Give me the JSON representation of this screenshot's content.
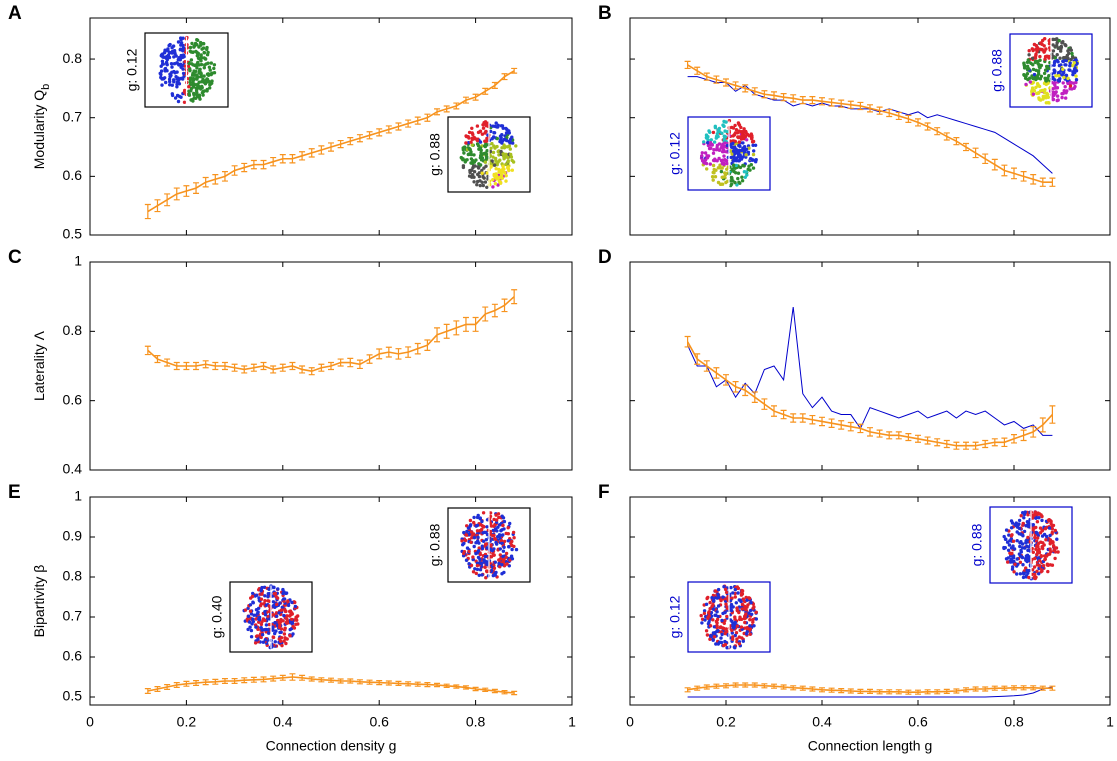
{
  "chart_data": [
    {
      "type": "line",
      "label": "A",
      "ylabel": "Modularity Q",
      "ylabel_sub": "b",
      "xlim": [
        0,
        1
      ],
      "xticks": [
        0,
        0.2,
        0.4,
        0.6,
        0.8,
        1
      ],
      "ylim": [
        0.5,
        0.87
      ],
      "yticks": [
        0.5,
        0.6,
        0.7,
        0.8
      ],
      "x": [
        0.12,
        0.14,
        0.16,
        0.18,
        0.2,
        0.22,
        0.24,
        0.26,
        0.28,
        0.3,
        0.32,
        0.34,
        0.36,
        0.38,
        0.4,
        0.42,
        0.44,
        0.46,
        0.48,
        0.5,
        0.52,
        0.54,
        0.56,
        0.58,
        0.6,
        0.62,
        0.64,
        0.66,
        0.68,
        0.7,
        0.72,
        0.74,
        0.76,
        0.78,
        0.8,
        0.82,
        0.84,
        0.86,
        0.88
      ],
      "series": [
        {
          "color": "#f7931e",
          "values": [
            0.54,
            0.55,
            0.56,
            0.57,
            0.575,
            0.58,
            0.59,
            0.595,
            0.6,
            0.61,
            0.615,
            0.62,
            0.62,
            0.625,
            0.63,
            0.63,
            0.635,
            0.64,
            0.645,
            0.65,
            0.655,
            0.66,
            0.665,
            0.67,
            0.675,
            0.68,
            0.685,
            0.69,
            0.695,
            0.7,
            0.71,
            0.715,
            0.72,
            0.73,
            0.735,
            0.745,
            0.755,
            0.77,
            0.78
          ],
          "errors": [
            0.012,
            0.01,
            0.01,
            0.01,
            0.009,
            0.009,
            0.008,
            0.008,
            0.008,
            0.008,
            0.007,
            0.007,
            0.007,
            0.007,
            0.007,
            0.007,
            0.007,
            0.007,
            0.007,
            0.007,
            0.006,
            0.006,
            0.006,
            0.006,
            0.006,
            0.006,
            0.006,
            0.006,
            0.006,
            0.006,
            0.005,
            0.005,
            0.005,
            0.005,
            0.005,
            0.005,
            0.005,
            0.005,
            0.004
          ]
        }
      ],
      "insets": [
        {
          "label": "g: 0.12",
          "color": "#000000"
        },
        {
          "label": "g: 0.88",
          "color": "#000000"
        }
      ]
    },
    {
      "type": "line",
      "label": "B",
      "xlim": [
        0,
        1
      ],
      "xticks": [
        0,
        0.2,
        0.4,
        0.6,
        0.8,
        1
      ],
      "ylim": [
        0.5,
        0.87
      ],
      "yticks": [
        0.5,
        0.6,
        0.7,
        0.8
      ],
      "x": [
        0.12,
        0.14,
        0.16,
        0.18,
        0.2,
        0.22,
        0.24,
        0.26,
        0.28,
        0.3,
        0.32,
        0.34,
        0.36,
        0.38,
        0.4,
        0.42,
        0.44,
        0.46,
        0.48,
        0.5,
        0.52,
        0.54,
        0.56,
        0.58,
        0.6,
        0.62,
        0.64,
        0.66,
        0.68,
        0.7,
        0.72,
        0.74,
        0.76,
        0.78,
        0.8,
        0.82,
        0.84,
        0.86,
        0.88
      ],
      "series": [
        {
          "color": "#0000cc",
          "values": [
            0.77,
            0.77,
            0.765,
            0.76,
            0.76,
            0.745,
            0.755,
            0.74,
            0.735,
            0.73,
            0.73,
            0.72,
            0.725,
            0.72,
            0.725,
            0.72,
            0.72,
            0.715,
            0.715,
            0.715,
            0.71,
            0.715,
            0.71,
            0.705,
            0.71,
            0.7,
            0.705,
            0.7,
            0.695,
            0.69,
            0.685,
            0.68,
            0.675,
            0.665,
            0.655,
            0.645,
            0.635,
            0.62,
            0.605
          ]
        },
        {
          "color": "#f7931e",
          "values": [
            0.79,
            0.78,
            0.77,
            0.765,
            0.76,
            0.755,
            0.75,
            0.745,
            0.74,
            0.738,
            0.735,
            0.733,
            0.73,
            0.73,
            0.728,
            0.726,
            0.724,
            0.722,
            0.72,
            0.716,
            0.712,
            0.708,
            0.703,
            0.698,
            0.692,
            0.685,
            0.677,
            0.668,
            0.66,
            0.65,
            0.64,
            0.63,
            0.62,
            0.61,
            0.605,
            0.6,
            0.595,
            0.59,
            0.59
          ],
          "errors": [
            0.006,
            0.006,
            0.006,
            0.006,
            0.006,
            0.006,
            0.006,
            0.006,
            0.006,
            0.006,
            0.006,
            0.006,
            0.006,
            0.006,
            0.006,
            0.006,
            0.006,
            0.006,
            0.006,
            0.006,
            0.006,
            0.006,
            0.006,
            0.006,
            0.006,
            0.006,
            0.006,
            0.006,
            0.006,
            0.006,
            0.008,
            0.008,
            0.009,
            0.009,
            0.009,
            0.008,
            0.008,
            0.007,
            0.007
          ]
        }
      ],
      "insets": [
        {
          "label": "g: 0.88",
          "color": "#0000cc"
        },
        {
          "label": "g: 0.12",
          "color": "#0000cc"
        }
      ]
    },
    {
      "type": "line",
      "label": "C",
      "ylabel": "Laterality Λ",
      "xlim": [
        0,
        1
      ],
      "xticks": [
        0,
        0.2,
        0.4,
        0.6,
        0.8,
        1
      ],
      "ylim": [
        0.4,
        1
      ],
      "yticks": [
        0.4,
        0.6,
        0.8,
        1
      ],
      "x": [
        0.12,
        0.14,
        0.16,
        0.18,
        0.2,
        0.22,
        0.24,
        0.26,
        0.28,
        0.3,
        0.32,
        0.34,
        0.36,
        0.38,
        0.4,
        0.42,
        0.44,
        0.46,
        0.48,
        0.5,
        0.52,
        0.54,
        0.56,
        0.58,
        0.6,
        0.62,
        0.64,
        0.66,
        0.68,
        0.7,
        0.72,
        0.74,
        0.76,
        0.78,
        0.8,
        0.82,
        0.84,
        0.86,
        0.88
      ],
      "series": [
        {
          "color": "#f7931e",
          "values": [
            0.745,
            0.72,
            0.71,
            0.7,
            0.7,
            0.7,
            0.705,
            0.7,
            0.7,
            0.695,
            0.69,
            0.695,
            0.7,
            0.69,
            0.695,
            0.7,
            0.69,
            0.685,
            0.695,
            0.7,
            0.71,
            0.71,
            0.705,
            0.72,
            0.735,
            0.74,
            0.735,
            0.74,
            0.75,
            0.76,
            0.79,
            0.8,
            0.81,
            0.82,
            0.82,
            0.85,
            0.86,
            0.875,
            0.9
          ],
          "errors": [
            0.012,
            0.01,
            0.01,
            0.01,
            0.01,
            0.01,
            0.01,
            0.01,
            0.01,
            0.01,
            0.01,
            0.01,
            0.01,
            0.01,
            0.01,
            0.01,
            0.01,
            0.01,
            0.01,
            0.01,
            0.01,
            0.012,
            0.012,
            0.012,
            0.014,
            0.014,
            0.015,
            0.015,
            0.015,
            0.015,
            0.02,
            0.02,
            0.02,
            0.02,
            0.02,
            0.02,
            0.018,
            0.018,
            0.02
          ]
        }
      ],
      "insets": []
    },
    {
      "type": "line",
      "label": "D",
      "xlim": [
        0,
        1
      ],
      "xticks": [
        0,
        0.2,
        0.4,
        0.6,
        0.8,
        1
      ],
      "ylim": [
        0.4,
        1
      ],
      "yticks": [
        0.4,
        0.6,
        0.8,
        1
      ],
      "x": [
        0.12,
        0.14,
        0.16,
        0.18,
        0.2,
        0.22,
        0.24,
        0.26,
        0.28,
        0.3,
        0.32,
        0.34,
        0.36,
        0.38,
        0.4,
        0.42,
        0.44,
        0.46,
        0.48,
        0.5,
        0.52,
        0.54,
        0.56,
        0.58,
        0.6,
        0.62,
        0.64,
        0.66,
        0.68,
        0.7,
        0.72,
        0.74,
        0.76,
        0.78,
        0.8,
        0.82,
        0.84,
        0.86,
        0.88
      ],
      "series": [
        {
          "color": "#0000cc",
          "values": [
            0.76,
            0.7,
            0.7,
            0.64,
            0.66,
            0.61,
            0.65,
            0.62,
            0.69,
            0.7,
            0.66,
            0.87,
            0.62,
            0.58,
            0.61,
            0.57,
            0.56,
            0.56,
            0.52,
            0.58,
            0.57,
            0.56,
            0.55,
            0.56,
            0.57,
            0.55,
            0.56,
            0.57,
            0.55,
            0.57,
            0.56,
            0.57,
            0.55,
            0.53,
            0.54,
            0.52,
            0.53,
            0.5,
            0.5
          ]
        },
        {
          "color": "#f7931e",
          "values": [
            0.77,
            0.72,
            0.7,
            0.68,
            0.66,
            0.64,
            0.63,
            0.61,
            0.59,
            0.57,
            0.56,
            0.55,
            0.55,
            0.545,
            0.54,
            0.535,
            0.53,
            0.525,
            0.52,
            0.51,
            0.505,
            0.5,
            0.5,
            0.495,
            0.49,
            0.485,
            0.48,
            0.475,
            0.47,
            0.47,
            0.47,
            0.475,
            0.48,
            0.48,
            0.49,
            0.5,
            0.51,
            0.53,
            0.56
          ],
          "errors": [
            0.015,
            0.015,
            0.015,
            0.015,
            0.015,
            0.015,
            0.015,
            0.015,
            0.015,
            0.015,
            0.012,
            0.012,
            0.012,
            0.012,
            0.012,
            0.012,
            0.012,
            0.012,
            0.012,
            0.012,
            0.01,
            0.01,
            0.01,
            0.01,
            0.01,
            0.01,
            0.01,
            0.01,
            0.01,
            0.01,
            0.01,
            0.01,
            0.01,
            0.012,
            0.012,
            0.015,
            0.015,
            0.02,
            0.025
          ]
        }
      ],
      "insets": []
    },
    {
      "type": "line",
      "label": "E",
      "ylabel": "Bipartivity β",
      "xlabel": "Connection density g",
      "xlim": [
        0,
        1
      ],
      "xticks": [
        0,
        0.2,
        0.4,
        0.6,
        0.8,
        1
      ],
      "ylim": [
        0.48,
        1
      ],
      "yticks": [
        0.5,
        0.6,
        0.7,
        0.8,
        0.9,
        1
      ],
      "x": [
        0.12,
        0.14,
        0.16,
        0.18,
        0.2,
        0.22,
        0.24,
        0.26,
        0.28,
        0.3,
        0.32,
        0.34,
        0.36,
        0.38,
        0.4,
        0.42,
        0.44,
        0.46,
        0.48,
        0.5,
        0.52,
        0.54,
        0.56,
        0.58,
        0.6,
        0.62,
        0.64,
        0.66,
        0.68,
        0.7,
        0.72,
        0.74,
        0.76,
        0.78,
        0.8,
        0.82,
        0.84,
        0.86,
        0.88
      ],
      "series": [
        {
          "color": "#f7931e",
          "values": [
            0.515,
            0.52,
            0.525,
            0.53,
            0.533,
            0.535,
            0.537,
            0.538,
            0.54,
            0.54,
            0.542,
            0.543,
            0.544,
            0.546,
            0.548,
            0.55,
            0.548,
            0.545,
            0.543,
            0.542,
            0.54,
            0.54,
            0.538,
            0.537,
            0.536,
            0.535,
            0.534,
            0.533,
            0.532,
            0.531,
            0.53,
            0.528,
            0.526,
            0.524,
            0.52,
            0.518,
            0.515,
            0.512,
            0.51
          ],
          "errors": [
            0.006,
            0.006,
            0.006,
            0.006,
            0.006,
            0.006,
            0.006,
            0.006,
            0.006,
            0.006,
            0.006,
            0.006,
            0.006,
            0.006,
            0.006,
            0.008,
            0.006,
            0.005,
            0.005,
            0.005,
            0.005,
            0.005,
            0.005,
            0.005,
            0.005,
            0.005,
            0.005,
            0.005,
            0.005,
            0.005,
            0.004,
            0.004,
            0.004,
            0.004,
            0.004,
            0.004,
            0.004,
            0.004,
            0.004
          ]
        }
      ],
      "insets": [
        {
          "label": "g: 0.40",
          "color": "#000000"
        },
        {
          "label": "g: 0.88",
          "color": "#000000"
        }
      ]
    },
    {
      "type": "line",
      "label": "F",
      "xlabel": "Connection length g",
      "xlim": [
        0,
        1
      ],
      "xticks": [
        0,
        0.2,
        0.4,
        0.6,
        0.8,
        1
      ],
      "ylim": [
        0.48,
        1
      ],
      "yticks": [
        0.5,
        0.6,
        0.7,
        0.8,
        0.9,
        1
      ],
      "x": [
        0.12,
        0.14,
        0.16,
        0.18,
        0.2,
        0.22,
        0.24,
        0.26,
        0.28,
        0.3,
        0.32,
        0.34,
        0.36,
        0.38,
        0.4,
        0.42,
        0.44,
        0.46,
        0.48,
        0.5,
        0.52,
        0.54,
        0.56,
        0.58,
        0.6,
        0.62,
        0.64,
        0.66,
        0.68,
        0.7,
        0.72,
        0.74,
        0.76,
        0.78,
        0.8,
        0.82,
        0.84,
        0.86,
        0.88
      ],
      "series": [
        {
          "color": "#0000cc",
          "values": [
            0.5,
            0.5,
            0.5,
            0.5,
            0.5,
            0.5,
            0.5,
            0.5,
            0.5,
            0.5,
            0.5,
            0.5,
            0.5,
            0.5,
            0.5,
            0.5,
            0.5,
            0.5,
            0.5,
            0.5,
            0.5,
            0.5,
            0.5,
            0.5,
            0.5,
            0.5,
            0.5,
            0.5,
            0.5,
            0.5,
            0.5,
            0.5,
            0.501,
            0.502,
            0.503,
            0.505,
            0.51,
            0.52,
            0.525
          ]
        },
        {
          "color": "#f7931e",
          "values": [
            0.518,
            0.522,
            0.525,
            0.527,
            0.528,
            0.53,
            0.53,
            0.53,
            0.528,
            0.527,
            0.525,
            0.523,
            0.522,
            0.52,
            0.518,
            0.517,
            0.516,
            0.515,
            0.514,
            0.514,
            0.513,
            0.513,
            0.513,
            0.512,
            0.512,
            0.513,
            0.513,
            0.514,
            0.515,
            0.518,
            0.52,
            0.52,
            0.522,
            0.522,
            0.523,
            0.523,
            0.523,
            0.522,
            0.522
          ],
          "errors": [
            0.005,
            0.005,
            0.005,
            0.005,
            0.005,
            0.005,
            0.005,
            0.005,
            0.005,
            0.005,
            0.005,
            0.005,
            0.005,
            0.005,
            0.005,
            0.005,
            0.005,
            0.005,
            0.005,
            0.005,
            0.005,
            0.005,
            0.005,
            0.005,
            0.005,
            0.005,
            0.005,
            0.005,
            0.005,
            0.005,
            0.005,
            0.005,
            0.005,
            0.005,
            0.005,
            0.005,
            0.005,
            0.005,
            0.005
          ]
        }
      ],
      "insets": [
        {
          "label": "g: 0.88",
          "color": "#0000cc"
        },
        {
          "label": "g: 0.12",
          "color": "#0000cc"
        }
      ]
    }
  ]
}
